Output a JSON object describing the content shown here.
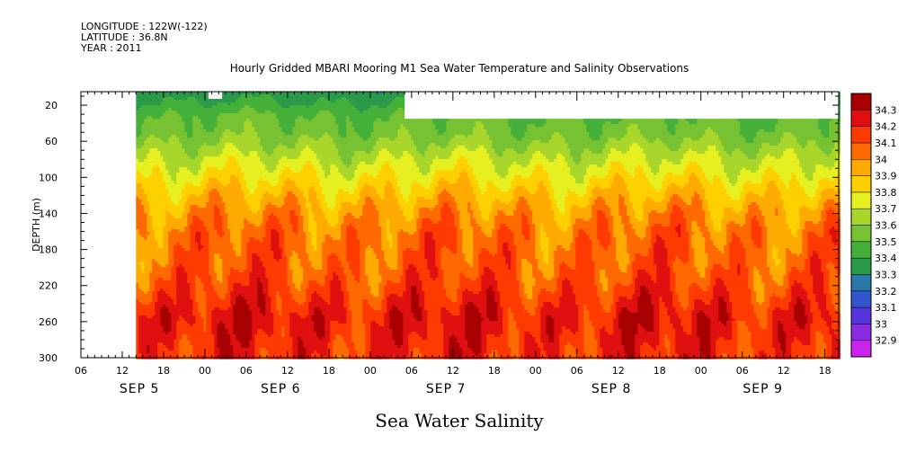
{
  "header": {
    "longitude": "LONGITUDE : 122W(-122)",
    "latitude": "LATITUDE : 36.8N",
    "year": "YEAR : 2011"
  },
  "chart_data": {
    "type": "heatmap",
    "title": "Hourly Gridded MBARI Mooring M1 Sea Water Temperature and Salinity Observations",
    "subtitle": "Sea Water Salinity",
    "ylabel": "DEPTH (m)",
    "xlabel": "",
    "xlim_hours": [
      0,
      110
    ],
    "data_start_hours": 8,
    "ylim": [
      300,
      5
    ],
    "y_ticks": [
      20,
      60,
      100,
      140,
      180,
      220,
      260,
      300
    ],
    "x_hour_ticks": [
      {
        "h": 0,
        "label": "06"
      },
      {
        "h": 6,
        "label": "12"
      },
      {
        "h": 12,
        "label": "18"
      },
      {
        "h": 18,
        "label": "00"
      },
      {
        "h": 24,
        "label": "06"
      },
      {
        "h": 30,
        "label": "12"
      },
      {
        "h": 36,
        "label": "18"
      },
      {
        "h": 42,
        "label": "00"
      },
      {
        "h": 48,
        "label": "06"
      },
      {
        "h": 54,
        "label": "12"
      },
      {
        "h": 60,
        "label": "18"
      },
      {
        "h": 66,
        "label": "00"
      },
      {
        "h": 72,
        "label": "06"
      },
      {
        "h": 78,
        "label": "12"
      },
      {
        "h": 84,
        "label": "18"
      },
      {
        "h": 90,
        "label": "00"
      },
      {
        "h": 96,
        "label": "06"
      },
      {
        "h": 102,
        "label": "12"
      },
      {
        "h": 108,
        "label": "18"
      }
    ],
    "day_labels": [
      {
        "h": 8.5,
        "label": "SEP 5"
      },
      {
        "h": 29,
        "label": "SEP 6"
      },
      {
        "h": 53,
        "label": "SEP 7"
      },
      {
        "h": 77,
        "label": "SEP 8"
      },
      {
        "h": 99,
        "label": "SEP 9"
      }
    ],
    "colorbar": {
      "levels": [
        32.9,
        33,
        33.1,
        33.2,
        33.3,
        33.4,
        33.5,
        33.6,
        33.7,
        33.8,
        33.9,
        34,
        34.1,
        34.2,
        34.3
      ],
      "labels": [
        "32.9",
        "33",
        "33.1",
        "33.2",
        "33.3",
        "33.4",
        "33.5",
        "33.6",
        "33.7",
        "33.8",
        "33.9",
        "34",
        "34.1",
        "34.2",
        "34.3"
      ],
      "colors": [
        "#cc22ee",
        "#8a2be2",
        "#5533dd",
        "#3355cc",
        "#2a77aa",
        "#2a9a4a",
        "#44b03a",
        "#77c233",
        "#a8d62a",
        "#e6f020",
        "#ffd000",
        "#ffaa00",
        "#ff6a00",
        "#ff3a00",
        "#e01010",
        "#a80000"
      ]
    },
    "depth_profile": [
      {
        "depth": 5,
        "value": 33.35
      },
      {
        "depth": 15,
        "value": 33.4
      },
      {
        "depth": 30,
        "value": 33.5
      },
      {
        "depth": 50,
        "value": 33.55
      },
      {
        "depth": 75,
        "value": 33.68
      },
      {
        "depth": 95,
        "value": 33.78
      },
      {
        "depth": 115,
        "value": 33.88
      },
      {
        "depth": 135,
        "value": 33.97
      },
      {
        "depth": 160,
        "value": 34.05
      },
      {
        "depth": 195,
        "value": 34.08
      },
      {
        "depth": 215,
        "value": 34.12
      },
      {
        "depth": 235,
        "value": 34.18
      },
      {
        "depth": 255,
        "value": 34.24
      },
      {
        "depth": 275,
        "value": 34.21
      },
      {
        "depth": 300,
        "value": 34.18
      }
    ],
    "gaps": [
      {
        "h_start": 47,
        "h_end": 110,
        "d_start": 5,
        "d_end": 35
      },
      {
        "h_start": 18.5,
        "h_end": 20.5,
        "d_start": 5,
        "d_end": 13
      }
    ]
  }
}
